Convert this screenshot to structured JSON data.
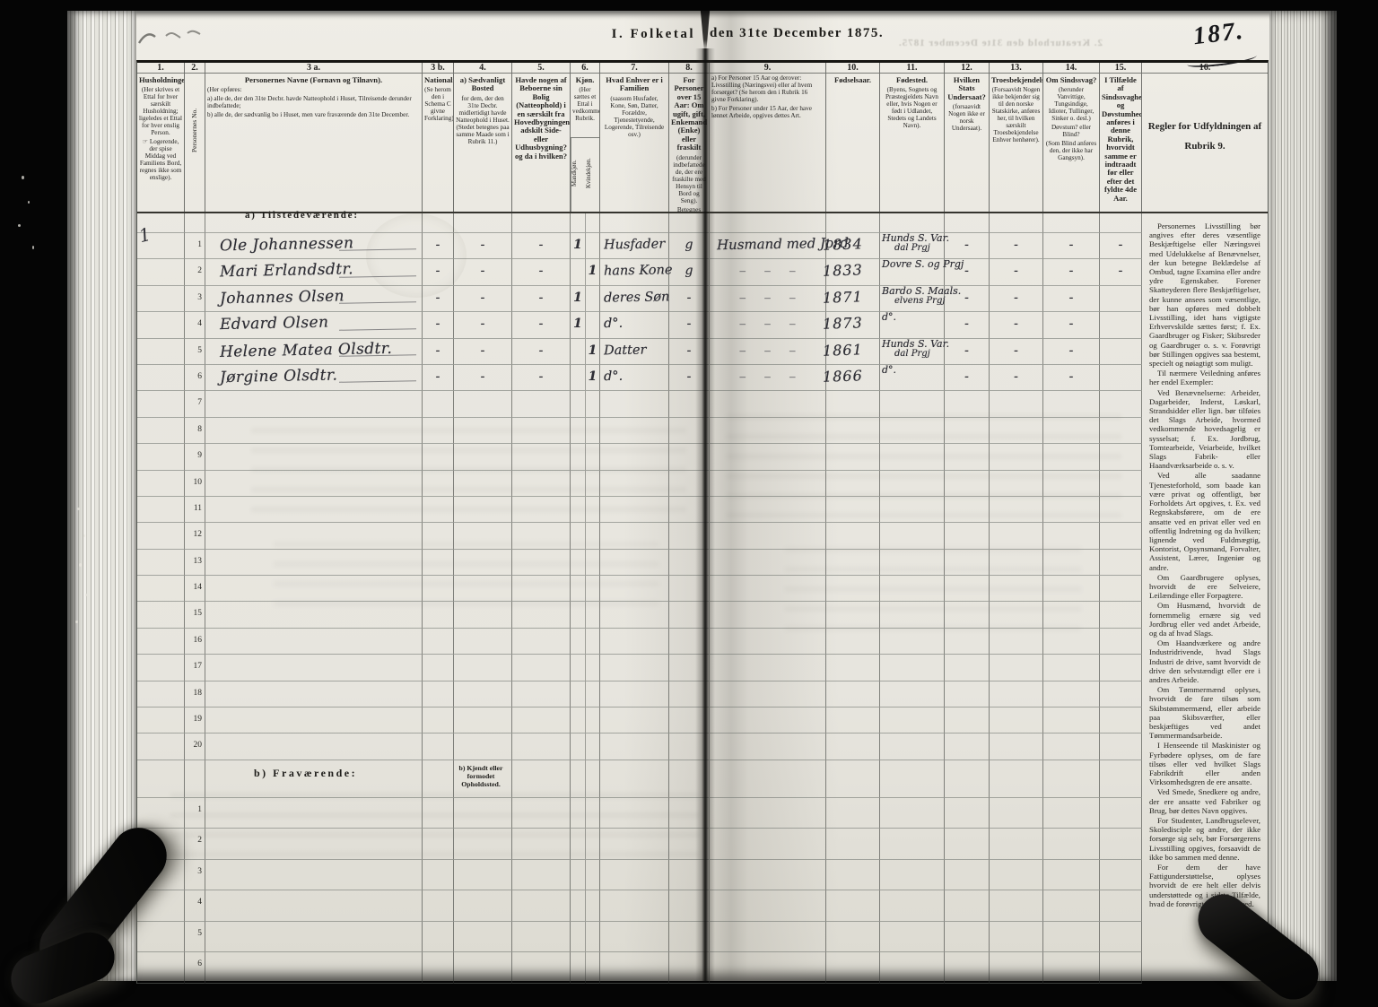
{
  "page": {
    "title_left": "I. Folketal",
    "title_right": "den 31te December 1875.",
    "page_number": "187.",
    "ghost_header": "2. Kreaturhold den 31te December 1875.",
    "section_a_label": "a) Tilstedeværende:",
    "section_b_label": "b) Fraværende:",
    "section_b_note": "b) Kjendt eller formodet Opholdssted."
  },
  "colors": {
    "paper": "#e9e7e0",
    "ink": "#232220",
    "background": "#050505"
  },
  "table": {
    "a_row_count": 20,
    "b_row_count": 6,
    "columns": [
      {
        "no": "1.",
        "title": "Husholdninger.",
        "note": "(Her skrives et Ettal for hver særskilt Husholdning; ligeledes et Ettal for hver enslig Person.\n☞ Logerende, der spise Middag ved Familiens Bord, regnes ikke som enslige)."
      },
      {
        "no": "2.",
        "title": "Personernes No.",
        "vertical": true
      },
      {
        "no": "3 a.",
        "title": "Personernes Navne (Fornavn og Tilnavn).",
        "note": "(Her opføres:\na) alle de, der den 31te Decbr. havde Natteophold i Huset, Tilreisende derunder indbefattede;\nb) alle de, der sædvanlig bo i Huset, men vare fraværende den 31te December.",
        "left": true
      },
      {
        "no": "3 b.",
        "title": "Nationalitet",
        "note": "(Se herom den i Schema C givne Forklaring)."
      },
      {
        "no": "4.",
        "title": "a) Sædvanligt Bosted",
        "note": "for dem, der den 31te Decbr. midlertidigt havde Natteophold i Huset. (Stedet betegnes paa samme Maade som i Rubrik 11.)"
      },
      {
        "no": "5.",
        "title": "Havde nogen af Beboerne sin Bolig (Natteophold) i en særskilt fra Hovedbygningen adskilt Side- eller Udhusbygning? og da i hvilken?"
      },
      {
        "no": "6.",
        "title": "Kjøn.",
        "note": "(Her sættes et Ettal i vedkommende Rubrik.",
        "sub": [
          "Mandkjøn.",
          "Kvindekjøn."
        ]
      },
      {
        "no": "7.",
        "title": "Hvad Enhver er i Familien",
        "note": "(saasom Husfader, Kone, Søn, Datter, Forældre, Tjenestetyende, Logerende, Tilreisende osv.)"
      },
      {
        "no": "8.",
        "title": "For Personer over 15 Aar: Om ugift, gift, Enkemand (Enke) eller fraskilt",
        "note": "(derunder indbefattede de, der ere fraskilte med Hensyn til Bord og Seng).\nBetegnes saaledes: ug., g., e., f."
      },
      {
        "no": "9.",
        "note": "a) For Personer 15 Aar og derover: Livsstilling (Næringsvei) eller af hvem forsørget? (Se herom den i Rubrik 16 givne Forklaring).\nb) For Personer under 15 Aar, der have lønnet Arbeide, opgives dettes Art.",
        "left": true
      },
      {
        "no": "10.",
        "title": "Fødselsaar."
      },
      {
        "no": "11.",
        "title": "Fødested.",
        "note": "(Byens, Sognets og Præstegjeldets Navn eller, hvis Nogen er født i Udlandet, Stedets og Landets Navn)."
      },
      {
        "no": "12.",
        "title": "Hvilken Stats Undersaat?",
        "note": "(forsaavidt Nogen ikke er norsk Undersaat)."
      },
      {
        "no": "13.",
        "title": "Troesbekjendelse.",
        "note": "(Forsaavidt Nogen ikke bekjender sig til den norske Statskirke, anføres her, til hvilken særskilt Troesbekjendelse Enhver henhører)."
      },
      {
        "no": "14.",
        "title": "Om Sindssvag?",
        "note": "(herunder Vanvittige, Tungsindige, Idioter, Tullinger, Sinker o. desl.)\nDøvstum? eller Blind?\n(Som Blind anføres den, der ikke har Gangsyn)."
      },
      {
        "no": "15.",
        "title": "I Tilfælde af Sindssvaghed og Døvstumhed anføres i denne Rubrik, hvorvidt samme er indtraadt før eller efter det fyldte 4de Aar."
      },
      {
        "no": "16.",
        "title": "Regler for Udfyldningen af Rubrik 9.",
        "regler": true
      }
    ],
    "rows": [
      {
        "hh": "1",
        "name": "Ole Johannessen",
        "nat": "-",
        "bosted": "-",
        "side": "-",
        "m": "1",
        "f": "",
        "fam": "Husfader",
        "stat": "g",
        "occ": "Husmand med Jord",
        "yr": "1834",
        "bp": [
          "Hunds S. Var.",
          "dal Prgj"
        ],
        "tail": [
          "-",
          "-",
          "-",
          "-"
        ]
      },
      {
        "hh": "",
        "name": "Mari Erlandsdtr.",
        "nat": "-",
        "bosted": "-",
        "side": "-",
        "m": "",
        "f": "1",
        "fam": "hans Kone",
        "stat": "g",
        "occ": "– – –",
        "yr": "1833",
        "bp": [
          "Dovre S. og Prgj"
        ],
        "tail": [
          "-",
          "-",
          "-",
          "-"
        ]
      },
      {
        "hh": "",
        "name": "Johannes Olsen",
        "nat": "-",
        "bosted": "-",
        "side": "-",
        "m": "1",
        "f": "",
        "fam": "deres Søn",
        "stat": "-",
        "occ": "– – –",
        "yr": "1871",
        "bp": [
          "Bardo S. Maals.",
          "elvens Prgj"
        ],
        "tail": [
          "-",
          "-",
          "-",
          ""
        ]
      },
      {
        "hh": "",
        "name": "Edvard Olsen",
        "nat": "-",
        "bosted": "-",
        "side": "-",
        "m": "1",
        "f": "",
        "fam": "d°.",
        "stat": "-",
        "occ": "– – –",
        "yr": "1873",
        "bp": [
          "d°."
        ],
        "tail": [
          "-",
          "-",
          "-",
          ""
        ]
      },
      {
        "hh": "",
        "name": "Helene Matea Olsdtr.",
        "nat": "-",
        "bosted": "-",
        "side": "-",
        "m": "",
        "f": "1",
        "fam": "Datter",
        "stat": "-",
        "occ": "– – –",
        "yr": "1861",
        "bp": [
          "Hunds S. Var.",
          "dal Prgj"
        ],
        "tail": [
          "-",
          "-",
          "-",
          ""
        ]
      },
      {
        "hh": "",
        "name": "Jørgine Olsdtr.",
        "nat": "-",
        "bosted": "-",
        "side": "-",
        "m": "",
        "f": "1",
        "fam": "d°.",
        "stat": "-",
        "occ": "– – –",
        "yr": "1866",
        "bp": [
          "d°."
        ],
        "tail": [
          "-",
          "-",
          "-",
          ""
        ]
      }
    ]
  },
  "instructions": {
    "paragraphs": [
      "Personernes Livsstilling bør angives efter deres væsentlige Beskjæftigelse eller Næringsvei med Udelukkelse af Benævnelser, der kun betegne Beklædelse af Ombud, tagne Examina eller andre ydre Egenskaber. Forener Skatteyderen flere Beskjæftigelser, der kunne ansees som væsentlige, bør han opføres med dobbelt Livsstilling, idet hans vigtigste Erhvervskilde sættes først; f. Ex. Gaardbruger og Fisker; Skibsreder og Gaardbruger o. s. v. Forøvrigt bør Stillingen opgives saa bestemt, specielt og nøiagtigt som muligt.",
      "Til nærmere Veiledning anføres her endel Exempler:",
      "Ved Benævnelserne: Arbeider, Dagarbeider, Inderst, Løskarl, Strandsidder eller lign. bør tilføies det Slags Arbeide, hvormed vedkommende hovedsagelig er sysselsat; f. Ex. Jordbrug, Tomtearbeide, Veiarbeide, hvilket Slags Fabrik- eller Haandværksarbeide o. s. v.",
      "Ved alle saadanne Tjenesteforhold, som baade kan være privat og offentligt, bør Forholdets Art opgives, t. Ex. ved Regnskabsførere, om de ere ansatte ved en privat eller ved en offentlig Indretning og da hvilken; lignende ved Fuldmægtig, Kontorist, Opsynsmand, Forvalter, Assistent, Lærer, Ingeniør og andre.",
      "Om Gaardbrugere oplyses, hvorvidt de ere Selveiere, Leilændinge eller Forpagtere.",
      "Om Husmænd, hvorvidt de fornemmelig ernære sig ved Jordbrug eller ved andet Arbeide, og da af hvad Slags.",
      "Om Haandværkere og andre Industridrivende, hvad Slags Industri de drive, samt hvorvidt de drive den selvstændigt eller ere i andres Arbeide.",
      "Om Tømmermænd oplyses, hvorvidt de fare tilsøs som Skibstømmermænd, eller arbeide paa Skibsværfter, eller beskjæftiges ved andet Tømmermandsarbeide.",
      "I Henseende til Maskinister og Fyrbødere oplyses, om de fare tilsøs eller ved hvilket Slags Fabrikdrift eller anden Virksomhedsgren de ere ansatte.",
      "Ved Smede, Snedkere og andre, der ere ansatte ved Fabriker og Brug, bør dettes Navn opgives.",
      "For Studenter, Landbrugselever, Skoledisciple og andre, der ikke forsørge sig selv, bør Forsørgerens Livsstilling opgives, forsaavidt de ikke bo sammen med denne.",
      "For dem der have Fattigunderstøttelse, oplyses hvorvidt de ere helt eller delvis understøttede og i sidste Tilfælde, hvad de forøvrigt ernære sig ved."
    ]
  }
}
